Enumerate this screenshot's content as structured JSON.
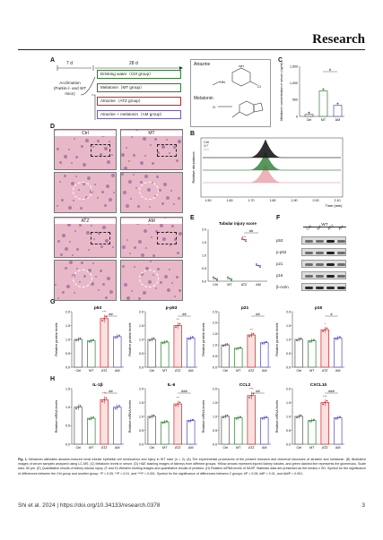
{
  "header": {
    "journal": "Research"
  },
  "panels": {
    "a": {
      "label": "A",
      "day1": "7 d",
      "day2": "28 d",
      "accl": [
        "Acclimation",
        "(Parkin-/- and WT",
        "mice)"
      ],
      "groups": [
        "Drinking water（Ctrl group）",
        "Melatonin（MT group）",
        "Atrazine（ATZ group）",
        "Atrazine + melatonin（AM group）"
      ],
      "colors": [
        "#2e7d32",
        "#2e7d32",
        "#c62828",
        "#6a5acd"
      ]
    },
    "atrazine_label": "Atrazine",
    "melatonin_label": "Melatonin",
    "c": {
      "label": "C",
      "ylabel": "Melatonin concentration in serum (ng/ml)",
      "ticks": [
        "1,500",
        "1,000",
        "500",
        "0"
      ],
      "cats": [
        "Ctrl",
        "MT",
        "AM"
      ],
      "sig": "#"
    },
    "b": {
      "label": "B",
      "ylabel": "Relative abundance",
      "xlabel": "Time (min)",
      "ticks": [
        "1.50",
        "1.60",
        "1.70",
        "1.80",
        "1.90",
        "2.00",
        "2.10"
      ],
      "legend": [
        "Ctrl",
        "MT",
        "AM"
      ]
    },
    "d": {
      "label": "D",
      "titles": [
        "Ctrl",
        "MT",
        "ATZ",
        "AM"
      ]
    },
    "e": {
      "label": "E",
      "title": "Tubular injury score",
      "ticks": [
        "2.0",
        "1.5",
        "1.0",
        "0.5",
        "0.0"
      ],
      "cats": [
        "Ctrl",
        "MT",
        "ATZ",
        "AM"
      ],
      "sig": "##",
      "star": "***"
    },
    "f": {
      "label": "F",
      "header": "WT",
      "cols": [
        "Ctrl",
        "MT",
        "ATZ",
        "AM"
      ],
      "rows": [
        "p53",
        "p-p53",
        "p21",
        "p16",
        "β-Actin"
      ]
    },
    "g": {
      "label": "G",
      "ylabel": "Relative protein levels",
      "cats": [
        "Ctrl",
        "MT",
        "ATZ",
        "AM"
      ]
    },
    "h": {
      "label": "H",
      "ylabel": "Relative mRNA levels",
      "cats": [
        "Ctrl",
        "MT",
        "ATZ",
        "AM"
      ]
    }
  },
  "chart_data": [
    {
      "type": "bar",
      "title": "p53",
      "categories": [
        "Ctrl",
        "MT",
        "ATZ",
        "AM"
      ],
      "values": [
        1.0,
        0.95,
        1.75,
        1.1
      ],
      "ylim": [
        0,
        2.0
      ],
      "ticks": [
        "2.0",
        "1.5",
        "1.0",
        "0.5",
        "0.0"
      ],
      "sig": "##",
      "star": "***"
    },
    {
      "type": "bar",
      "title": "p-p53",
      "categories": [
        "Ctrl",
        "MT",
        "ATZ",
        "AM"
      ],
      "values": [
        1.0,
        0.9,
        1.5,
        1.05
      ],
      "ylim": [
        0,
        2.0
      ],
      "ticks": [
        "2.0",
        "1.5",
        "1.0",
        "0.5",
        "0.0"
      ],
      "sig": "##",
      "star": "**"
    },
    {
      "type": "bar",
      "title": "p21",
      "categories": [
        "Ctrl",
        "MT",
        "ATZ",
        "AM"
      ],
      "values": [
        1.0,
        0.85,
        1.45,
        1.1
      ],
      "ylim": [
        0,
        2.5
      ],
      "ticks": [
        "2.5",
        "2.0",
        "1.5",
        "1.0",
        "0.5",
        "0.0"
      ],
      "sig": "##",
      "star": "**"
    },
    {
      "type": "bar",
      "title": "p16",
      "categories": [
        "Ctrl",
        "MT",
        "ATZ",
        "AM"
      ],
      "values": [
        1.0,
        0.95,
        1.35,
        1.05
      ],
      "ylim": [
        0,
        2.0
      ],
      "ticks": [
        "2.0",
        "1.5",
        "1.0",
        "0.5",
        "0.0"
      ],
      "sig": "#",
      "star": "*"
    },
    {
      "type": "bar",
      "title": "IL-1β",
      "categories": [
        "Ctrl",
        "MT",
        "ATZ",
        "AM"
      ],
      "values": [
        1.0,
        0.7,
        1.2,
        1.0
      ],
      "ylim": [
        0,
        1.5
      ],
      "ticks": [
        "1.5",
        "1.0",
        "0.5",
        "0.0"
      ],
      "sig": "##",
      "star": "***"
    },
    {
      "type": "bar",
      "title": "IL-6",
      "categories": [
        "Ctrl",
        "MT",
        "ATZ",
        "AM"
      ],
      "values": [
        1.0,
        0.8,
        1.45,
        0.85
      ],
      "ylim": [
        0,
        2.0
      ],
      "ticks": [
        "2.0",
        "1.5",
        "1.0",
        "0.5",
        "0.0"
      ],
      "sig": "###",
      "star": "**"
    },
    {
      "type": "bar",
      "title": "CCL2",
      "categories": [
        "Ctrl",
        "MT",
        "ATZ",
        "AM"
      ],
      "values": [
        1.0,
        0.95,
        1.75,
        0.95
      ],
      "ylim": [
        0,
        2.0
      ],
      "ticks": [
        "2.0",
        "1.5",
        "1.0",
        "0.5",
        "0.0"
      ],
      "sig": "##",
      "star": "***"
    },
    {
      "type": "bar",
      "title": "CXCL10",
      "categories": [
        "Ctrl",
        "MT",
        "ATZ",
        "AM"
      ],
      "values": [
        1.0,
        0.85,
        1.5,
        0.95
      ],
      "ylim": [
        0,
        2.0
      ],
      "ticks": [
        "2.0",
        "1.5",
        "1.0",
        "0.5",
        "0.0"
      ],
      "sig": "###",
      "star": "***"
    }
  ],
  "bar_colors": [
    "#555555",
    "#2e7d32",
    "#c62828",
    "#4b4bbf"
  ],
  "bar_fills": [
    "#ffffff",
    "#ffffff",
    "#fde0e0",
    "#ffffff"
  ],
  "caption": {
    "lead": "Fig. 1.",
    "text": " Melatonin alleviates atrazine-induced renal tubular epithelial cell senescence and injury in WT mice (n = 3). (A) The experimental procedures of the present research and chemical structures of atrazine and melatonin. (B) Illustrative images of serum samples analyzed using LC-MS. (C) Melatonin levels in serum. (D) H&E staining images of kidneys from different groups. Yellow arrows represent injured kidney tubules, and green dashed line represents the glomerulus. Scale bars: 50 μm. (E) Quantitative results of kidney tubular injury. (F and G) Western blotting images and quantitative results of proteins. (H) Relative mRNA levels of SASP. Statistics data are presented as the means ± SD. Symbol for the significance of differences between the Ctrl group and another group: *P < 0.05, **P < 0.01, and ***P < 0.001. Symbol for the significance of differences between 2 groups: #P < 0.05, ##P < 0.01, and ###P < 0.001."
  },
  "footer": {
    "citation": "Shi et al. 2024 | https://doi.org/10.34133/research.0378",
    "page": "3"
  }
}
